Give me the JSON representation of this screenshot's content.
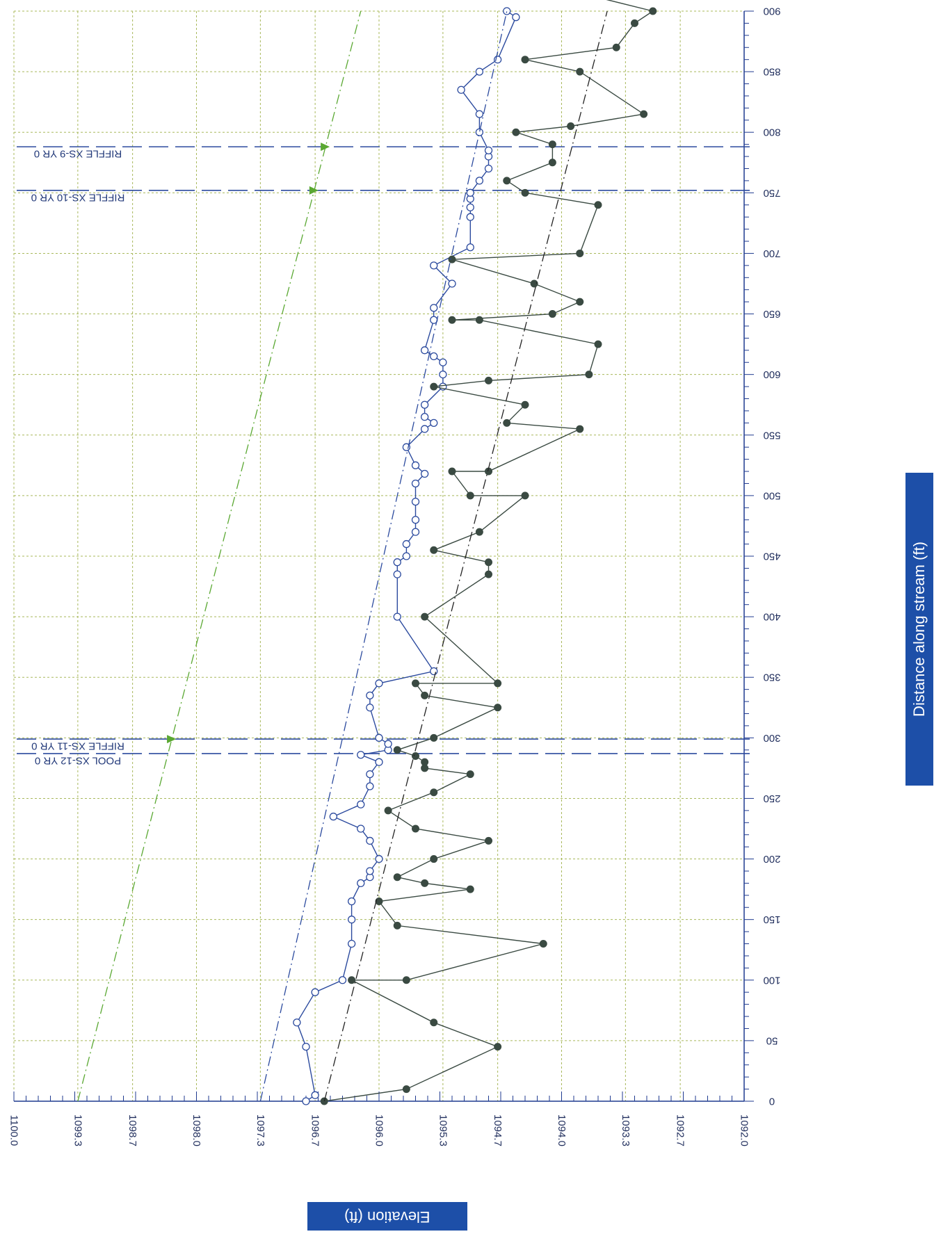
{
  "chart_data": {
    "type": "line",
    "xlabel": "Distance along stream (ft)",
    "ylabel": "Elevation (ft)",
    "xlim": [
      0,
      900
    ],
    "ylim": [
      1092.0,
      1100.0
    ],
    "x_ticks": [
      0,
      50,
      100,
      150,
      200,
      250,
      300,
      350,
      400,
      450,
      500,
      550,
      600,
      650,
      700,
      750,
      800,
      850,
      900
    ],
    "y_ticks": [
      "1092.0",
      "1092.7",
      "1093.3",
      "1094.0",
      "1094.7",
      "1095.3",
      "1096.0",
      "1096.7",
      "1097.3",
      "1098.0",
      "1098.7",
      "1099.3",
      "1100.0"
    ],
    "grid": true,
    "orientation": "rotated",
    "series": [
      {
        "name": "",
        "style": "line-open-circle",
        "color": "#2b4a9e",
        "points": [
          [
            0,
            1096.8
          ],
          [
            5,
            1096.7
          ],
          [
            45,
            1096.8
          ],
          [
            65,
            1096.9
          ],
          [
            90,
            1096.7
          ],
          [
            100,
            1096.4
          ],
          [
            130,
            1096.3
          ],
          [
            150,
            1096.3
          ],
          [
            165,
            1096.3
          ],
          [
            180,
            1096.2
          ],
          [
            185,
            1096.1
          ],
          [
            190,
            1096.1
          ],
          [
            200,
            1096.0
          ],
          [
            215,
            1096.1
          ],
          [
            225,
            1096.2
          ],
          [
            235,
            1096.5
          ],
          [
            245,
            1096.2
          ],
          [
            260,
            1096.1
          ],
          [
            270,
            1096.1
          ],
          [
            280,
            1096.0
          ],
          [
            286,
            1096.2
          ],
          [
            290,
            1095.9
          ],
          [
            295,
            1095.9
          ],
          [
            300,
            1096.0
          ],
          [
            325,
            1096.1
          ],
          [
            335,
            1096.1
          ],
          [
            345,
            1096.0
          ],
          [
            355,
            1095.4
          ],
          [
            400,
            1095.8
          ],
          [
            435,
            1095.8
          ],
          [
            445,
            1095.8
          ],
          [
            450,
            1095.7
          ],
          [
            460,
            1095.7
          ],
          [
            470,
            1095.6
          ],
          [
            480,
            1095.6
          ],
          [
            495,
            1095.6
          ],
          [
            510,
            1095.6
          ],
          [
            518,
            1095.5
          ],
          [
            525,
            1095.6
          ],
          [
            540,
            1095.7
          ],
          [
            555,
            1095.5
          ],
          [
            560,
            1095.4
          ],
          [
            565,
            1095.5
          ],
          [
            575,
            1095.5
          ],
          [
            590,
            1095.3
          ],
          [
            600,
            1095.3
          ],
          [
            610,
            1095.3
          ],
          [
            615,
            1095.4
          ],
          [
            620,
            1095.5
          ],
          [
            645,
            1095.4
          ],
          [
            655,
            1095.4
          ],
          [
            675,
            1095.2
          ],
          [
            690,
            1095.4
          ],
          [
            705,
            1095.0
          ],
          [
            730,
            1095.0
          ],
          [
            738,
            1095.0
          ],
          [
            745,
            1095.0
          ],
          [
            750,
            1095.0
          ],
          [
            760,
            1094.9
          ],
          [
            770,
            1094.8
          ],
          [
            780,
            1094.8
          ],
          [
            785,
            1094.8
          ],
          [
            800,
            1094.9
          ],
          [
            815,
            1094.9
          ],
          [
            835,
            1095.1
          ],
          [
            850,
            1094.9
          ],
          [
            860,
            1094.7
          ],
          [
            895,
            1094.5
          ],
          [
            900,
            1094.6
          ]
        ]
      },
      {
        "name": "",
        "style": "line-filled-circle",
        "color": "#3a4a42",
        "points": [
          [
            0,
            1096.6
          ],
          [
            10,
            1095.7
          ],
          [
            45,
            1094.7
          ],
          [
            65,
            1095.4
          ],
          [
            100,
            1096.3
          ],
          [
            100,
            1095.7
          ],
          [
            130,
            1094.2
          ],
          [
            145,
            1095.8
          ],
          [
            165,
            1096.0
          ],
          [
            175,
            1095.0
          ],
          [
            180,
            1095.5
          ],
          [
            185,
            1095.8
          ],
          [
            200,
            1095.4
          ],
          [
            215,
            1094.8
          ],
          [
            225,
            1095.6
          ],
          [
            240,
            1095.9
          ],
          [
            255,
            1095.4
          ],
          [
            270,
            1095.0
          ],
          [
            275,
            1095.5
          ],
          [
            280,
            1095.5
          ],
          [
            285,
            1095.6
          ],
          [
            290,
            1095.8
          ],
          [
            300,
            1095.4
          ],
          [
            325,
            1094.7
          ],
          [
            335,
            1095.5
          ],
          [
            345,
            1095.6
          ],
          [
            345,
            1094.7
          ],
          [
            400,
            1095.5
          ],
          [
            435,
            1094.8
          ],
          [
            445,
            1094.8
          ],
          [
            455,
            1095.4
          ],
          [
            470,
            1094.9
          ],
          [
            500,
            1094.4
          ],
          [
            500,
            1095.0
          ],
          [
            520,
            1095.2
          ],
          [
            520,
            1094.8
          ],
          [
            555,
            1093.8
          ],
          [
            560,
            1094.6
          ],
          [
            575,
            1094.4
          ],
          [
            590,
            1095.4
          ],
          [
            595,
            1094.8
          ],
          [
            600,
            1093.7
          ],
          [
            625,
            1093.6
          ],
          [
            645,
            1094.9
          ],
          [
            645,
            1095.2
          ],
          [
            650,
            1094.1
          ],
          [
            660,
            1093.8
          ],
          [
            675,
            1094.3
          ],
          [
            695,
            1095.2
          ],
          [
            700,
            1093.8
          ],
          [
            740,
            1093.6
          ],
          [
            750,
            1094.4
          ],
          [
            760,
            1094.6
          ],
          [
            775,
            1094.1
          ],
          [
            790,
            1094.1
          ],
          [
            800,
            1094.5
          ],
          [
            805,
            1093.9
          ],
          [
            815,
            1093.1
          ],
          [
            850,
            1093.8
          ],
          [
            860,
            1094.4
          ],
          [
            870,
            1093.4
          ],
          [
            890,
            1093.2
          ],
          [
            900,
            1093.0
          ],
          [
            915,
            1093.8
          ],
          [
            920,
            1094.1
          ]
        ]
      },
      {
        "name": "",
        "style": "dash-dot",
        "color": "#222222",
        "points": [
          [
            0,
            1096.6
          ],
          [
            900,
            1093.5
          ]
        ]
      },
      {
        "name": "",
        "style": "dash-dot",
        "color": "#2b4a9e",
        "points": [
          [
            0,
            1097.3
          ],
          [
            900,
            1094.6
          ]
        ]
      },
      {
        "name": "",
        "style": "dash-dot",
        "color": "#5aa832",
        "points": [
          [
            0,
            1099.3
          ],
          [
            900,
            1096.2
          ]
        ]
      }
    ],
    "cross_sections": [
      {
        "x": 287,
        "label": "POOL XS-12 YR 0",
        "marker": false
      },
      {
        "x": 299,
        "label": "RIFFLE XS-11 YR 0",
        "marker": true
      },
      {
        "x": 752,
        "label": "RIFFLE XS-10 YR 0",
        "marker": true
      },
      {
        "x": 788,
        "label": "RIFFLE XS-9 YR 0",
        "marker": true
      }
    ]
  },
  "colors": {
    "grid": "#a8b85a",
    "axis": "#1f3a8f",
    "open_series": "#2b4a9e",
    "filled_series": "#3a4a42",
    "xs_line": "#2b4a9e",
    "green_line": "#5aa832",
    "title_box": "#1d4fa8"
  }
}
